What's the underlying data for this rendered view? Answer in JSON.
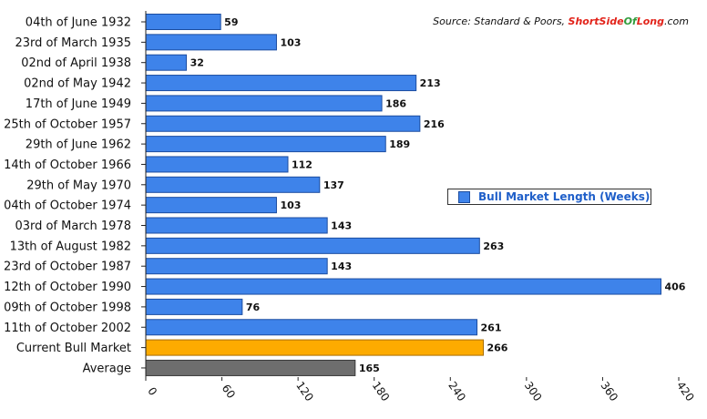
{
  "chart_data": {
    "type": "bar",
    "orientation": "horizontal",
    "categories": [
      "04th of June 1932",
      "23rd of March 1935",
      "02nd of April 1938",
      "02nd of May 1942",
      "17th of June 1949",
      "25th of October 1957",
      "29th of June 1962",
      "14th of October 1966",
      "29th of May 1970",
      "04th of October 1974",
      "03rd of March 1978",
      "13th of August 1982",
      "23rd of October 1987",
      "12th of October 1990",
      "09th of October 1998",
      "11th of October 2002",
      "Current Bull Market",
      "Average"
    ],
    "values": [
      59,
      103,
      32,
      213,
      186,
      216,
      189,
      112,
      137,
      103,
      143,
      263,
      143,
      406,
      76,
      261,
      266,
      165
    ],
    "bar_colors": [
      "#3e83ea",
      "#3e83ea",
      "#3e83ea",
      "#3e83ea",
      "#3e83ea",
      "#3e83ea",
      "#3e83ea",
      "#3e83ea",
      "#3e83ea",
      "#3e83ea",
      "#3e83ea",
      "#3e83ea",
      "#3e83ea",
      "#3e83ea",
      "#3e83ea",
      "#3e83ea",
      "#fdab00",
      "#6e6e6e"
    ],
    "xlim": [
      0,
      420
    ],
    "xticks": [
      0,
      60,
      120,
      180,
      240,
      300,
      360,
      420
    ],
    "grid": false,
    "legend": {
      "label": "Bull Market Length (Weeks)",
      "placement": "right-middle",
      "color": "#3e83ea"
    },
    "source": {
      "prefix": "Source: Standard & Poors, ",
      "site_a": "ShortSide",
      "site_b": "Of",
      "site_c": "Long",
      "suffix": ".com"
    }
  }
}
